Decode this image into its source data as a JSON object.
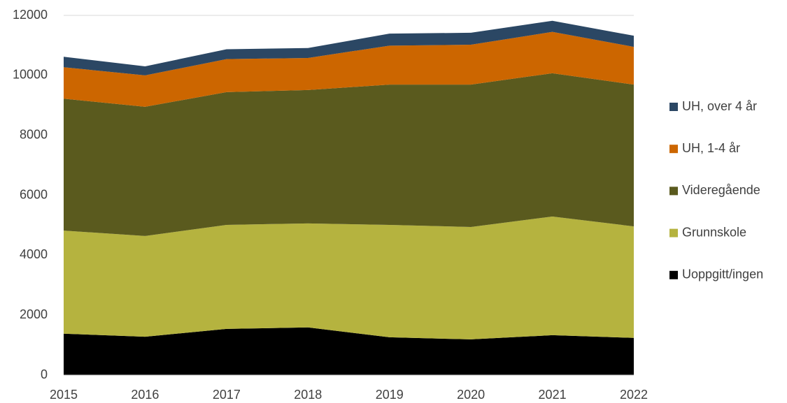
{
  "chart_data": {
    "type": "stacked_area",
    "categories": [
      "2015",
      "2016",
      "2017",
      "2018",
      "2019",
      "2020",
      "2021",
      "2022"
    ],
    "series": [
      {
        "name": "Uoppgitt/ingen",
        "color": "#000000",
        "values": [
          1380,
          1280,
          1540,
          1590,
          1260,
          1190,
          1330,
          1240
        ]
      },
      {
        "name": "Grunnskole",
        "color": "#b5b33f",
        "values": [
          3440,
          3360,
          3470,
          3470,
          3750,
          3750,
          3960,
          3720
        ]
      },
      {
        "name": "Videregående",
        "color": "#5a5a1e",
        "values": [
          4400,
          4310,
          4430,
          4450,
          4680,
          4750,
          4780,
          4730
        ]
      },
      {
        "name": "UH, 1-4 år",
        "color": "#cc6600",
        "values": [
          1050,
          1050,
          1100,
          1070,
          1300,
          1330,
          1380,
          1260
        ]
      },
      {
        "name": "UH, over 4 år",
        "color": "#2b4764",
        "values": [
          350,
          300,
          330,
          330,
          400,
          400,
          370,
          370
        ]
      }
    ],
    "ylim": [
      0,
      12000
    ],
    "yticks": [
      0,
      2000,
      4000,
      6000,
      8000,
      10000,
      12000
    ],
    "grid": true,
    "legend": "right"
  }
}
